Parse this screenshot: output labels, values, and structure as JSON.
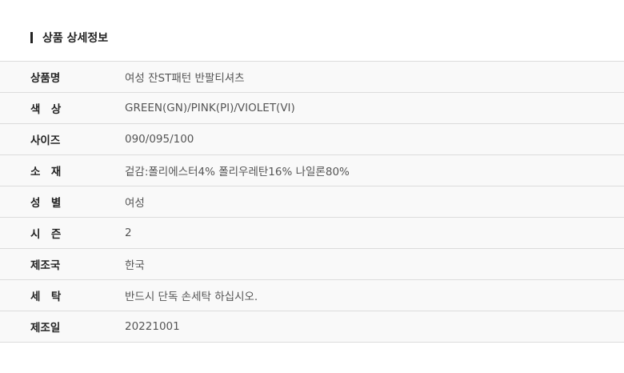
{
  "title": "상품 상세정보",
  "rows": [
    {
      "label": "상품명",
      "value": "여성 잔ST패턴 반팔티셔츠"
    },
    {
      "label": "색　상",
      "value": "GREEN(GN)/PINK(PI)/VIOLET(VI)"
    },
    {
      "label": "사이즈",
      "value": "090/095/100"
    },
    {
      "label": "소　재",
      "value": "겉감:폴리에스터4% 폴리우레탄16% 나일론80%"
    },
    {
      "label": "성　별",
      "value": "여성"
    },
    {
      "label": "시　즌",
      "value": "2"
    },
    {
      "label": "제조국",
      "value": "한국"
    },
    {
      "label": "세　탁",
      "value": "반드시 단독 손세탁 하십시오."
    },
    {
      "label": "제조일",
      "value": "20221001"
    }
  ]
}
